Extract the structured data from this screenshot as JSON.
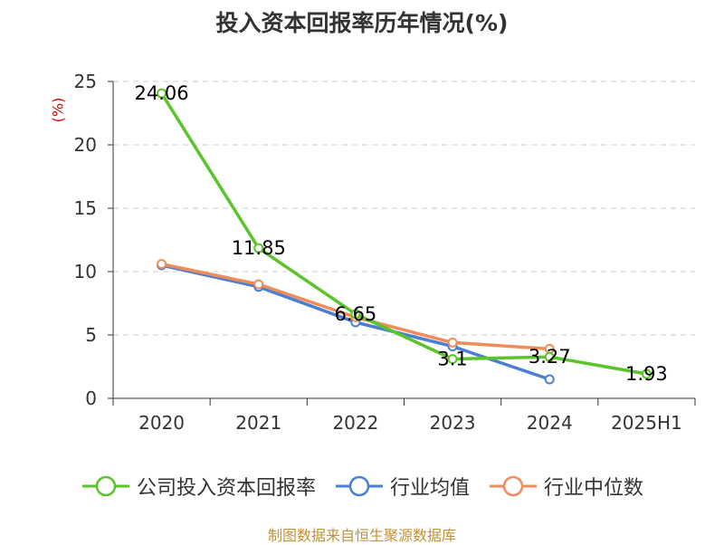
{
  "chart_data": {
    "type": "line",
    "title": "投入资本回报率历年情况(%)",
    "ylabel": "(%)",
    "xlabel": "",
    "categories": [
      "2020",
      "2021",
      "2022",
      "2023",
      "2024",
      "2025H1"
    ],
    "ylim": [
      0,
      25
    ],
    "yticks": [
      "0",
      "5",
      "10",
      "15",
      "20",
      "25"
    ],
    "grid": true,
    "legend_position": "bottom",
    "series": [
      {
        "name": "公司投入资本回报率",
        "color": "#5ac42a",
        "values": [
          24.06,
          11.85,
          6.65,
          3.1,
          3.27,
          1.93
        ],
        "labels": [
          "24.06",
          "11.85",
          "6.65",
          "3.1",
          "3.27",
          "1.93"
        ]
      },
      {
        "name": "行业均值",
        "color": "#4a7fd4",
        "values": [
          10.5,
          8.8,
          6.0,
          4.1,
          1.5,
          null
        ]
      },
      {
        "name": "行业中位数",
        "color": "#f08c5a",
        "values": [
          10.6,
          9.0,
          6.4,
          4.4,
          3.9,
          null
        ]
      }
    ]
  },
  "source": "制图数据来自恒生聚源数据库"
}
